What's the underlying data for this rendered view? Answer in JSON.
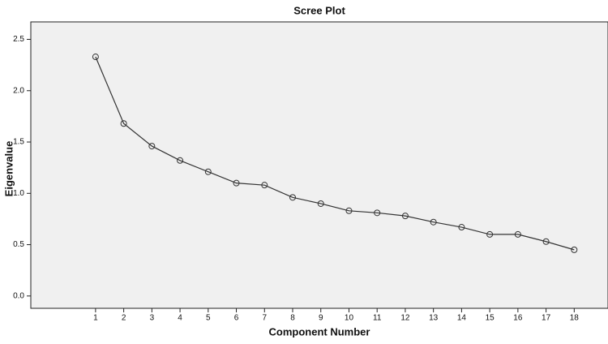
{
  "chart_data": {
    "type": "line",
    "title": "Scree Plot",
    "x_label": "Component Number",
    "y_label": "Eigenvalue",
    "x": [
      1,
      2,
      3,
      4,
      5,
      6,
      7,
      8,
      9,
      10,
      11,
      12,
      13,
      14,
      15,
      16,
      17,
      18
    ],
    "values": [
      2.33,
      1.68,
      1.46,
      1.32,
      1.21,
      1.1,
      1.08,
      0.96,
      0.9,
      0.83,
      0.81,
      0.78,
      0.72,
      0.67,
      0.6,
      0.6,
      0.53,
      0.45
    ],
    "color": "#333333",
    "marker": "circle",
    "xlim": [
      -1.3,
      19.2
    ],
    "xticks": [
      1,
      2,
      3,
      4,
      5,
      6,
      7,
      8,
      9,
      10,
      11,
      12,
      13,
      14,
      15,
      16,
      17,
      18
    ],
    "ylim": [
      -0.12,
      2.67
    ],
    "yticks": [
      {
        "value": 0,
        "label": "0.0"
      },
      0.5,
      {
        "value": 1,
        "label": "1.0"
      },
      1.5,
      {
        "value": 2,
        "label": "2.0"
      },
      2.5
    ],
    "grid": false
  }
}
